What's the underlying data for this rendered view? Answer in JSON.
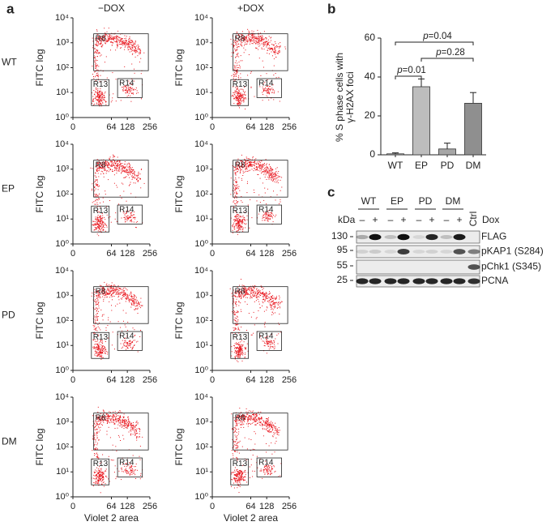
{
  "panel_labels": [
    "a",
    "b",
    "c"
  ],
  "chart_data": [
    {
      "type": "flow-scatter-grid",
      "column_titles": [
        "−DOX",
        "+DOX"
      ],
      "row_labels": [
        "WT",
        "EP",
        "PD",
        "DM"
      ],
      "ylabel": "FITC log",
      "xlabel": "Violet 2 area",
      "yscale": "log",
      "xscale": "sqrt",
      "ylim": [
        1,
        10000
      ],
      "yticks": [
        {
          "value": 1,
          "label": "10⁰"
        },
        {
          "value": 10,
          "label": "10¹"
        },
        {
          "value": 100,
          "label": "10²"
        },
        {
          "value": 1000,
          "label": "10³"
        },
        {
          "value": 10000,
          "label": "10⁴"
        }
      ],
      "xlim": [
        0,
        256
      ],
      "xticks": [
        0,
        64,
        128,
        256
      ],
      "gates": [
        "R8",
        "R13",
        "R14"
      ],
      "dot_color": "#e8141c"
    },
    {
      "type": "bar",
      "categories": [
        "WT",
        "EP",
        "PD",
        "DM"
      ],
      "values": [
        0.5,
        35,
        3,
        26.5
      ],
      "errors": [
        0.5,
        4,
        3,
        5.5
      ],
      "colors": [
        "#d4d4d4",
        "#bdbdbd",
        "#a6a6a6",
        "#8f8f8f"
      ],
      "ylabel": [
        "% S phase cells with",
        "γ-H2AX foci"
      ],
      "ylim": [
        0,
        60
      ],
      "yticks": [
        0,
        20,
        40,
        60
      ],
      "annotations": [
        {
          "text": "p=0.04",
          "from": "WT",
          "to": "DM"
        },
        {
          "text": "p=0.28",
          "from": "EP",
          "to": "DM"
        },
        {
          "text": "p=0.01",
          "from": "WT",
          "to": "EP"
        }
      ]
    }
  ],
  "blot": {
    "groups": [
      "WT",
      "EP",
      "PD",
      "DM"
    ],
    "control": "Ctrl",
    "dox_signs": [
      "–",
      "+"
    ],
    "kda_label": "kDa",
    "dox_label": "Dox",
    "markers": [
      130,
      95,
      55,
      25
    ],
    "bands": [
      "FLAG",
      "pKAP1 (S284)",
      "pChk1 (S345)",
      "PCNA"
    ]
  }
}
